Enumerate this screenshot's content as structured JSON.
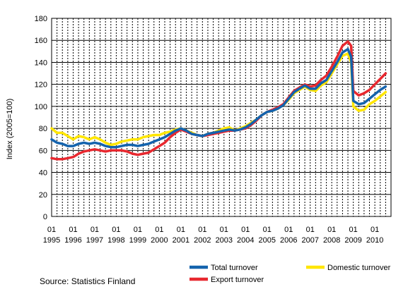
{
  "chart_data": {
    "type": "line",
    "ylabel": "Index (2005=100)",
    "xlabel": "",
    "ylim": [
      0,
      180
    ],
    "yticks": [
      0,
      20,
      40,
      60,
      80,
      100,
      120,
      140,
      160,
      180
    ],
    "xlim": [
      1995.0,
      2010.75
    ],
    "xtick_labels": [
      {
        "period": "01",
        "year": "1995"
      },
      {
        "period": "01",
        "year": "1996"
      },
      {
        "period": "01",
        "year": "1997"
      },
      {
        "period": "01",
        "year": "1998"
      },
      {
        "period": "01",
        "year": "1999"
      },
      {
        "period": "01",
        "year": "2000"
      },
      {
        "period": "01",
        "year": "2001"
      },
      {
        "period": "01",
        "year": "2002"
      },
      {
        "period": "01",
        "year": "2003"
      },
      {
        "period": "01",
        "year": "2004"
      },
      {
        "period": "01",
        "year": "2005"
      },
      {
        "period": "01",
        "year": "2006"
      },
      {
        "period": "01",
        "year": "2007"
      },
      {
        "period": "01",
        "year": "2008"
      },
      {
        "period": "01",
        "year": "2009"
      },
      {
        "period": "01",
        "year": "2010"
      }
    ],
    "grid": {
      "horizontal": "solid",
      "vertical": "dashed"
    },
    "legend_position": "bottom",
    "source": "Source: Statistics Finland",
    "series": [
      {
        "name": "Domestic turnover",
        "color": "#ffe600",
        "points": [
          [
            1995.0,
            80
          ],
          [
            1995.25,
            76
          ],
          [
            1995.5,
            76
          ],
          [
            1995.75,
            73
          ],
          [
            1996.0,
            70
          ],
          [
            1996.25,
            73
          ],
          [
            1996.5,
            72
          ],
          [
            1996.75,
            70
          ],
          [
            1997.0,
            72
          ],
          [
            1997.25,
            70
          ],
          [
            1997.5,
            67
          ],
          [
            1997.75,
            65
          ],
          [
            1998.0,
            66
          ],
          [
            1998.25,
            68
          ],
          [
            1998.5,
            69
          ],
          [
            1998.75,
            70
          ],
          [
            1999.0,
            70
          ],
          [
            1999.25,
            72
          ],
          [
            1999.5,
            73
          ],
          [
            1999.75,
            74
          ],
          [
            2000.0,
            74
          ],
          [
            2000.25,
            76
          ],
          [
            2000.5,
            77
          ],
          [
            2000.75,
            79
          ],
          [
            2001.0,
            80
          ],
          [
            2001.25,
            78
          ],
          [
            2001.5,
            76
          ],
          [
            2001.75,
            74
          ],
          [
            2002.0,
            73
          ],
          [
            2002.25,
            75
          ],
          [
            2002.5,
            76
          ],
          [
            2002.75,
            78
          ],
          [
            2003.0,
            80
          ],
          [
            2003.25,
            81
          ],
          [
            2003.5,
            78
          ],
          [
            2003.75,
            80
          ],
          [
            2004.0,
            82
          ],
          [
            2004.25,
            85
          ],
          [
            2004.5,
            88
          ],
          [
            2004.75,
            92
          ],
          [
            2005.0,
            95
          ],
          [
            2005.25,
            96
          ],
          [
            2005.5,
            98
          ],
          [
            2005.75,
            101
          ],
          [
            2006.0,
            106
          ],
          [
            2006.25,
            112
          ],
          [
            2006.5,
            115
          ],
          [
            2006.75,
            118
          ],
          [
            2007.0,
            115
          ],
          [
            2007.25,
            114
          ],
          [
            2007.5,
            119
          ],
          [
            2007.75,
            122
          ],
          [
            2008.0,
            130
          ],
          [
            2008.25,
            138
          ],
          [
            2008.5,
            146
          ],
          [
            2008.75,
            148
          ],
          [
            2008.9,
            140
          ],
          [
            2009.0,
            100
          ],
          [
            2009.25,
            96
          ],
          [
            2009.5,
            97
          ],
          [
            2009.75,
            102
          ],
          [
            2010.0,
            105
          ],
          [
            2010.25,
            109
          ],
          [
            2010.5,
            113
          ]
        ]
      },
      {
        "name": "Export turnover",
        "color": "#e8282f",
        "points": [
          [
            1995.0,
            53
          ],
          [
            1995.25,
            52
          ],
          [
            1995.5,
            52
          ],
          [
            1995.75,
            53
          ],
          [
            1996.0,
            54
          ],
          [
            1996.25,
            57
          ],
          [
            1996.5,
            59
          ],
          [
            1996.75,
            60
          ],
          [
            1997.0,
            61
          ],
          [
            1997.25,
            60
          ],
          [
            1997.5,
            59
          ],
          [
            1997.75,
            60
          ],
          [
            1998.0,
            60
          ],
          [
            1998.25,
            60
          ],
          [
            1998.5,
            59
          ],
          [
            1998.75,
            57
          ],
          [
            1999.0,
            56
          ],
          [
            1999.25,
            57
          ],
          [
            1999.5,
            58
          ],
          [
            1999.75,
            61
          ],
          [
            2000.0,
            64
          ],
          [
            2000.25,
            67
          ],
          [
            2000.5,
            72
          ],
          [
            2000.75,
            76
          ],
          [
            2001.0,
            79
          ],
          [
            2001.25,
            77
          ],
          [
            2001.5,
            75
          ],
          [
            2001.75,
            74
          ],
          [
            2002.0,
            73
          ],
          [
            2002.25,
            74
          ],
          [
            2002.5,
            75
          ],
          [
            2002.75,
            76
          ],
          [
            2003.0,
            77
          ],
          [
            2003.25,
            78
          ],
          [
            2003.5,
            78
          ],
          [
            2003.75,
            79
          ],
          [
            2004.0,
            80
          ],
          [
            2004.25,
            83
          ],
          [
            2004.5,
            87
          ],
          [
            2004.75,
            92
          ],
          [
            2005.0,
            95
          ],
          [
            2005.25,
            97
          ],
          [
            2005.5,
            99
          ],
          [
            2005.75,
            102
          ],
          [
            2006.0,
            108
          ],
          [
            2006.25,
            114
          ],
          [
            2006.5,
            117
          ],
          [
            2006.75,
            120
          ],
          [
            2007.0,
            118
          ],
          [
            2007.25,
            119
          ],
          [
            2007.5,
            124
          ],
          [
            2007.75,
            128
          ],
          [
            2008.0,
            136
          ],
          [
            2008.25,
            145
          ],
          [
            2008.5,
            155
          ],
          [
            2008.75,
            159
          ],
          [
            2008.9,
            155
          ],
          [
            2009.0,
            114
          ],
          [
            2009.25,
            110
          ],
          [
            2009.5,
            112
          ],
          [
            2009.75,
            115
          ],
          [
            2010.0,
            120
          ],
          [
            2010.25,
            125
          ],
          [
            2010.5,
            130
          ]
        ]
      },
      {
        "name": "Total turnover",
        "color": "#1463ad",
        "points": [
          [
            1995.0,
            70
          ],
          [
            1995.25,
            67
          ],
          [
            1995.5,
            66
          ],
          [
            1995.75,
            64
          ],
          [
            1996.0,
            64
          ],
          [
            1996.25,
            66
          ],
          [
            1996.5,
            67
          ],
          [
            1996.75,
            66
          ],
          [
            1997.0,
            67
          ],
          [
            1997.25,
            66
          ],
          [
            1997.5,
            64
          ],
          [
            1997.75,
            63
          ],
          [
            1998.0,
            63
          ],
          [
            1998.25,
            64
          ],
          [
            1998.5,
            65
          ],
          [
            1998.75,
            65
          ],
          [
            1999.0,
            64
          ],
          [
            1999.25,
            65
          ],
          [
            1999.5,
            66
          ],
          [
            1999.75,
            68
          ],
          [
            2000.0,
            70
          ],
          [
            2000.25,
            72
          ],
          [
            2000.5,
            75
          ],
          [
            2000.75,
            78
          ],
          [
            2001.0,
            80
          ],
          [
            2001.25,
            78
          ],
          [
            2001.5,
            75
          ],
          [
            2001.75,
            74
          ],
          [
            2002.0,
            73
          ],
          [
            2002.25,
            75
          ],
          [
            2002.5,
            76
          ],
          [
            2002.75,
            77
          ],
          [
            2003.0,
            78
          ],
          [
            2003.25,
            79
          ],
          [
            2003.5,
            78
          ],
          [
            2003.75,
            79
          ],
          [
            2004.0,
            81
          ],
          [
            2004.25,
            84
          ],
          [
            2004.5,
            88
          ],
          [
            2004.75,
            92
          ],
          [
            2005.0,
            95
          ],
          [
            2005.25,
            96
          ],
          [
            2005.5,
            98
          ],
          [
            2005.75,
            101
          ],
          [
            2006.0,
            107
          ],
          [
            2006.25,
            113
          ],
          [
            2006.5,
            116
          ],
          [
            2006.75,
            119
          ],
          [
            2007.0,
            116
          ],
          [
            2007.25,
            116
          ],
          [
            2007.5,
            121
          ],
          [
            2007.75,
            124
          ],
          [
            2008.0,
            132
          ],
          [
            2008.25,
            140
          ],
          [
            2008.5,
            149
          ],
          [
            2008.75,
            152
          ],
          [
            2008.9,
            145
          ],
          [
            2009.0,
            105
          ],
          [
            2009.25,
            102
          ],
          [
            2009.5,
            103
          ],
          [
            2009.75,
            107
          ],
          [
            2010.0,
            111
          ],
          [
            2010.25,
            115
          ],
          [
            2010.5,
            118
          ]
        ]
      }
    ],
    "legend": [
      {
        "name": "Total turnover",
        "color": "#1463ad"
      },
      {
        "name": "Domestic turnover",
        "color": "#ffe600"
      },
      {
        "name": "Export turnover",
        "color": "#e8282f"
      }
    ]
  }
}
